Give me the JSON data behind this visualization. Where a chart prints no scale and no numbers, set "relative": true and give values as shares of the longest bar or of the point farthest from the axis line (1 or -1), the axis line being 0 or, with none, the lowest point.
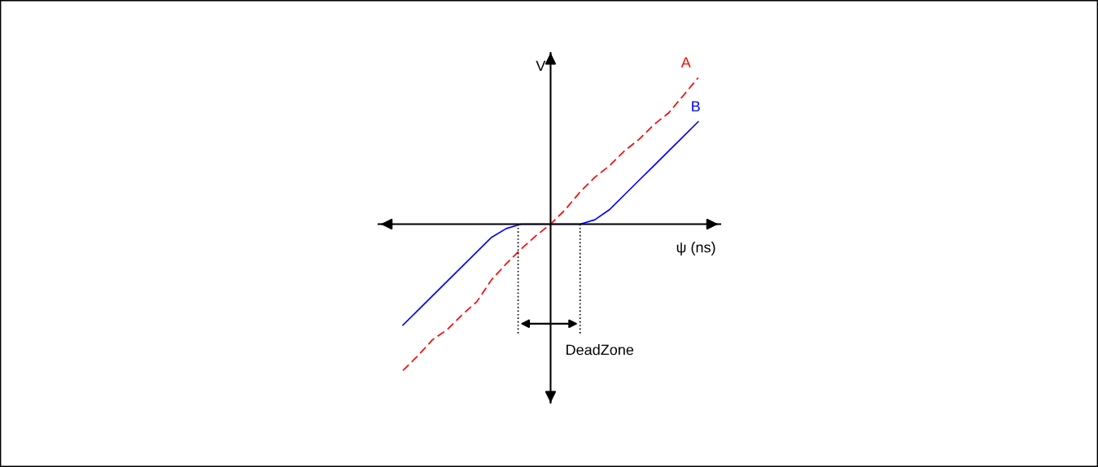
{
  "chart_data": {
    "type": "line",
    "relative": true,
    "xlabel": "ψ (ns)",
    "ylabel": "V",
    "grid": false,
    "legend": false,
    "annotations": [
      "DeadZone"
    ],
    "categories": [
      null,
      null,
      null,
      null,
      null,
      null,
      null,
      null,
      null,
      null,
      null,
      null,
      null,
      null,
      null,
      null,
      null,
      null,
      null,
      null,
      null
    ],
    "series": [
      {
        "name": "A",
        "color": "#ff0000",
        "line_style": "dashed",
        "values": [
          -1,
          -0.9,
          -0.79,
          -0.72,
          -0.62,
          -0.53,
          -0.38,
          -0.27,
          -0.17,
          -0.08,
          0,
          0.1,
          0.22,
          0.32,
          0.4,
          0.5,
          0.58,
          0.68,
          0.76,
          0.88,
          1
        ]
      },
      {
        "name": "B",
        "color": "#0000ff",
        "line_style": "solid",
        "values": [
          -0.69,
          -0.59,
          -0.49,
          -0.39,
          -0.29,
          -0.19,
          -0.09,
          -0.03,
          0,
          0,
          0,
          0,
          0,
          0.03,
          0.1,
          0.2,
          0.3,
          0.4,
          0.5,
          0.6,
          0.7
        ]
      }
    ]
  }
}
